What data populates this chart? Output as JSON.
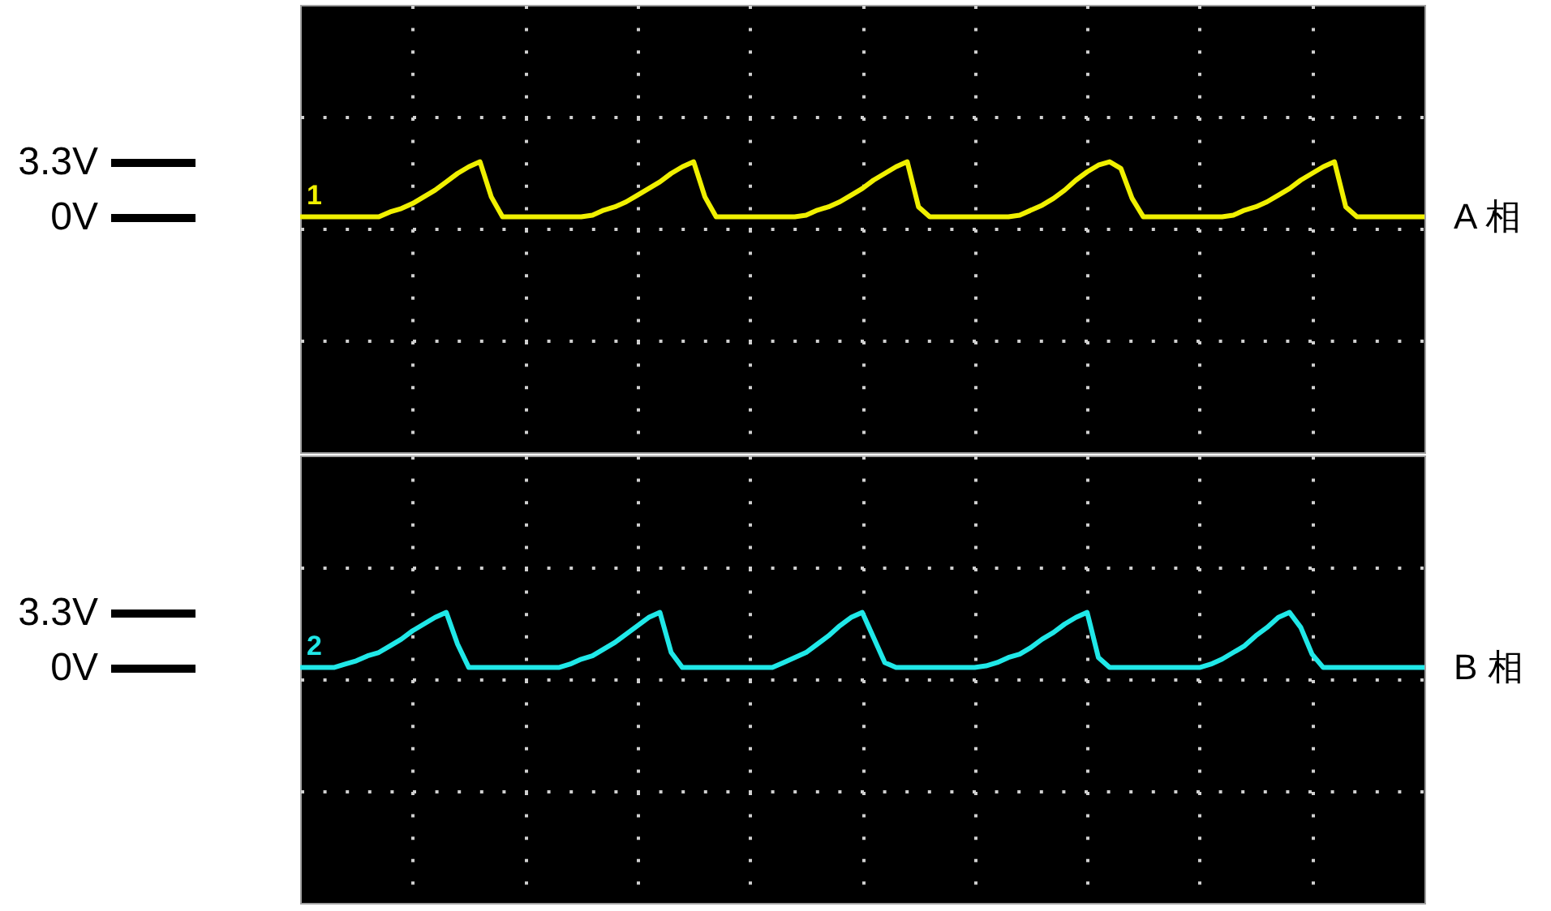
{
  "chart_data": [
    {
      "type": "line",
      "categories": [
        null,
        null,
        null,
        null,
        null,
        null,
        null,
        null,
        null,
        null,
        null,
        null,
        null,
        null,
        null,
        null,
        null,
        null,
        null,
        null,
        null,
        null,
        null,
        null,
        null,
        null,
        null,
        null,
        null,
        null,
        null,
        null,
        null,
        null,
        null,
        null,
        null,
        null,
        null,
        null,
        null,
        null,
        null,
        null,
        null,
        null,
        null,
        null,
        null,
        null,
        null,
        null,
        null,
        null,
        null,
        null,
        null,
        null,
        null,
        null,
        null,
        null,
        null,
        null,
        null,
        null,
        null,
        null,
        null,
        null,
        null,
        null,
        null,
        null,
        null,
        null,
        null,
        null,
        null,
        null,
        null,
        null,
        null,
        null,
        null,
        null,
        null,
        null,
        null,
        null,
        null,
        null,
        null,
        null,
        null,
        null,
        null,
        null,
        null,
        null,
        null
      ],
      "series": [
        {
          "name": "A 相",
          "color": "#f0f000",
          "values": [
            0,
            0,
            0,
            0,
            0,
            0,
            0,
            0,
            0.3,
            0.5,
            0.8,
            1.2,
            1.6,
            2.1,
            2.6,
            3.0,
            3.3,
            1.2,
            0,
            0,
            0,
            0,
            0,
            0,
            0,
            0,
            0.1,
            0.4,
            0.6,
            0.9,
            1.3,
            1.7,
            2.1,
            2.6,
            3.0,
            3.3,
            1.2,
            0,
            0,
            0,
            0,
            0,
            0,
            0,
            0,
            0.1,
            0.4,
            0.6,
            0.9,
            1.3,
            1.7,
            2.2,
            2.6,
            3.0,
            3.3,
            0.6,
            0,
            0,
            0,
            0,
            0,
            0,
            0,
            0,
            0.1,
            0.4,
            0.7,
            1.1,
            1.6,
            2.2,
            2.7,
            3.1,
            3.3,
            2.9,
            1.1,
            0,
            0,
            0,
            0,
            0,
            0,
            0,
            0,
            0.1,
            0.4,
            0.6,
            0.9,
            1.3,
            1.7,
            2.2,
            2.6,
            3.0,
            3.3,
            0.6,
            0,
            0,
            0,
            0,
            0,
            0,
            0
          ]
        }
      ],
      "ylim": [
        -14.1,
        12.7
      ],
      "yticks": [
        {
          "value": 6.0,
          "label": null
        },
        {
          "value": -0.7,
          "label": null
        },
        {
          "value": -7.4,
          "label": null
        },
        {
          "value": 0,
          "label": "0V"
        },
        {
          "value": 3.3,
          "label": "3.3V"
        }
      ],
      "grid": true,
      "tick_labels": "y",
      "annotations": [
        "1"
      ]
    },
    {
      "type": "line",
      "categories": [
        null,
        null,
        null,
        null,
        null,
        null,
        null,
        null,
        null,
        null,
        null,
        null,
        null,
        null,
        null,
        null,
        null,
        null,
        null,
        null,
        null,
        null,
        null,
        null,
        null,
        null,
        null,
        null,
        null,
        null,
        null,
        null,
        null,
        null,
        null,
        null,
        null,
        null,
        null,
        null,
        null,
        null,
        null,
        null,
        null,
        null,
        null,
        null,
        null,
        null,
        null,
        null,
        null,
        null,
        null,
        null,
        null,
        null,
        null,
        null,
        null,
        null,
        null,
        null,
        null,
        null,
        null,
        null,
        null,
        null,
        null,
        null,
        null,
        null,
        null,
        null,
        null,
        null,
        null,
        null,
        null,
        null,
        null,
        null,
        null,
        null,
        null,
        null,
        null,
        null,
        null,
        null,
        null,
        null,
        null,
        null,
        null,
        null,
        null,
        null,
        null
      ],
      "series": [
        {
          "name": "B 相",
          "color": "#20e8e8",
          "values": [
            0,
            0,
            0,
            0,
            0.2,
            0.4,
            0.7,
            0.9,
            1.3,
            1.7,
            2.2,
            2.6,
            3.0,
            3.3,
            1.4,
            0,
            0,
            0,
            0,
            0,
            0,
            0,
            0,
            0,
            0.2,
            0.5,
            0.7,
            1.1,
            1.5,
            2.0,
            2.5,
            3.0,
            3.3,
            0.9,
            0,
            0,
            0,
            0,
            0,
            0,
            0,
            0,
            0.0,
            0.3,
            0.6,
            0.9,
            1.4,
            1.9,
            2.5,
            3.0,
            3.3,
            1.8,
            0.3,
            0,
            0,
            0,
            0,
            0,
            0,
            0,
            0,
            0.1,
            0.3,
            0.6,
            0.8,
            1.2,
            1.7,
            2.1,
            2.6,
            3.0,
            3.3,
            0.6,
            0,
            0,
            0,
            0,
            0,
            0,
            0,
            0,
            0,
            0.2,
            0.5,
            0.9,
            1.3,
            1.9,
            2.4,
            3.0,
            3.3,
            2.4,
            0.8,
            0,
            0,
            0,
            0,
            0,
            0,
            0,
            0,
            0,
            0
          ]
        }
      ],
      "ylim": [
        -14.1,
        12.7
      ],
      "yticks": [
        {
          "value": 6.0,
          "label": null
        },
        {
          "value": -0.7,
          "label": null
        },
        {
          "value": -7.4,
          "label": null
        },
        {
          "value": 0,
          "label": "0V"
        },
        {
          "value": 3.3,
          "label": "3.3V"
        }
      ],
      "grid": true,
      "tick_labels": "y",
      "annotations": [
        "2"
      ]
    }
  ]
}
